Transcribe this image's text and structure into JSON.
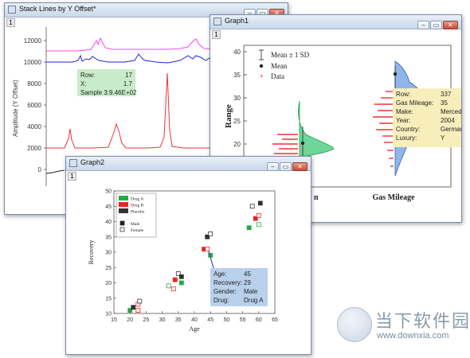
{
  "windows": {
    "stack": {
      "title": "Stack Lines by Y Offset*",
      "page": "1"
    },
    "graph1": {
      "title": "Graph1",
      "page": "1"
    },
    "graph2": {
      "title": "Graph2",
      "page": "1"
    }
  },
  "window_buttons": {
    "minimize": "–",
    "restore": "▭",
    "close": "✕"
  },
  "colors": {
    "magenta": "#ff44ee",
    "blue": "#2222dd",
    "red": "#ee3333",
    "green_fill": "#6fd69a",
    "blue_fill": "#8fb6e8",
    "tooltip_green": "#c8ecc8",
    "tooltip_yellow": "#f8eebc",
    "tooltip_blue": "#b8d0ec",
    "drug_a": "#22aa44",
    "drug_b": "#ee2222",
    "placebo": "#333333"
  },
  "stack_chart": {
    "ylabel": "Amplitude (Y Offset)",
    "yticks": [
      "12000",
      "10000",
      "8000",
      "6000",
      "4000",
      "2000",
      "0"
    ],
    "tooltip": [
      {
        "k": "Row:",
        "v": "17"
      },
      {
        "k": "X:",
        "v": "1.7"
      },
      {
        "k": "Sample 3:",
        "v": "9.46E+02"
      }
    ]
  },
  "graph1_chart": {
    "ylabel": "Range",
    "xlabel_right": "Gas Mileage",
    "xlabel_left_fragment": "n",
    "yticks": [
      "40",
      "35",
      "30",
      "25",
      "20",
      "15"
    ],
    "legend": [
      "Mean ± 1 SD",
      "Mean",
      "Data"
    ],
    "tooltip": [
      {
        "k": "Row:",
        "v": "337"
      },
      {
        "k": "Gas Mileage:",
        "v": "35"
      },
      {
        "k": "Make:",
        "v": "Mercedes"
      },
      {
        "k": "Year:",
        "v": "2004"
      },
      {
        "k": "Country:",
        "v": "Germany"
      },
      {
        "k": "Luxury:",
        "v": "Y"
      }
    ]
  },
  "chart_data": {
    "type": "scatter",
    "xlabel": "Age",
    "ylabel": "Recovery",
    "xlim": [
      15,
      65
    ],
    "ylim": [
      10,
      50
    ],
    "xticks": [
      15,
      20,
      25,
      30,
      35,
      40,
      45,
      50,
      55,
      60,
      65
    ],
    "yticks": [
      10,
      15,
      20,
      25,
      30,
      35,
      40,
      45,
      50
    ],
    "legend_drugs": [
      "Drug A",
      "Drug B",
      "Placebo"
    ],
    "legend_gender": [
      "Male",
      "Female"
    ],
    "points": [
      {
        "x": 20,
        "y": 11,
        "drug": "Drug A",
        "gender": "Male"
      },
      {
        "x": 21,
        "y": 12,
        "drug": "Placebo",
        "gender": "Male"
      },
      {
        "x": 22.5,
        "y": 11,
        "drug": "Drug B",
        "gender": "Female"
      },
      {
        "x": 22.5,
        "y": 13,
        "drug": "Drug B",
        "gender": "Female"
      },
      {
        "x": 23,
        "y": 14,
        "drug": "Placebo",
        "gender": "Female"
      },
      {
        "x": 32,
        "y": 19,
        "drug": "Drug A",
        "gender": "Female"
      },
      {
        "x": 33.5,
        "y": 18,
        "drug": "Drug B",
        "gender": "Female"
      },
      {
        "x": 34,
        "y": 21,
        "drug": "Drug B",
        "gender": "Male"
      },
      {
        "x": 35,
        "y": 23,
        "drug": "Placebo",
        "gender": "Female"
      },
      {
        "x": 36,
        "y": 20,
        "drug": "Drug A",
        "gender": "Male"
      },
      {
        "x": 36,
        "y": 22,
        "drug": "Placebo",
        "gender": "Male"
      },
      {
        "x": 43,
        "y": 31,
        "drug": "Drug B",
        "gender": "Male"
      },
      {
        "x": 44,
        "y": 35,
        "drug": "Placebo",
        "gender": "Male"
      },
      {
        "x": 44,
        "y": 31,
        "drug": "Drug B",
        "gender": "Female"
      },
      {
        "x": 45,
        "y": 29,
        "drug": "Drug A",
        "gender": "Male"
      },
      {
        "x": 45,
        "y": 36,
        "drug": "Placebo",
        "gender": "Female"
      },
      {
        "x": 57,
        "y": 38,
        "drug": "Drug A",
        "gender": "Male"
      },
      {
        "x": 58,
        "y": 45,
        "drug": "Placebo",
        "gender": "Female"
      },
      {
        "x": 59,
        "y": 41,
        "drug": "Drug B",
        "gender": "Male"
      },
      {
        "x": 60,
        "y": 42,
        "drug": "Drug B",
        "gender": "Female"
      },
      {
        "x": 60,
        "y": 39,
        "drug": "Drug A",
        "gender": "Female"
      },
      {
        "x": 60.5,
        "y": 46,
        "drug": "Placebo",
        "gender": "Male"
      }
    ],
    "tooltip": [
      {
        "k": "Age:",
        "v": "45"
      },
      {
        "k": "Recovery:",
        "v": "29"
      },
      {
        "k": "Gender:",
        "v": "Male"
      },
      {
        "k": "Drug:",
        "v": "Drug A"
      }
    ]
  },
  "watermark": {
    "main": "当下软件园",
    "sub": "www.downxia.com"
  }
}
